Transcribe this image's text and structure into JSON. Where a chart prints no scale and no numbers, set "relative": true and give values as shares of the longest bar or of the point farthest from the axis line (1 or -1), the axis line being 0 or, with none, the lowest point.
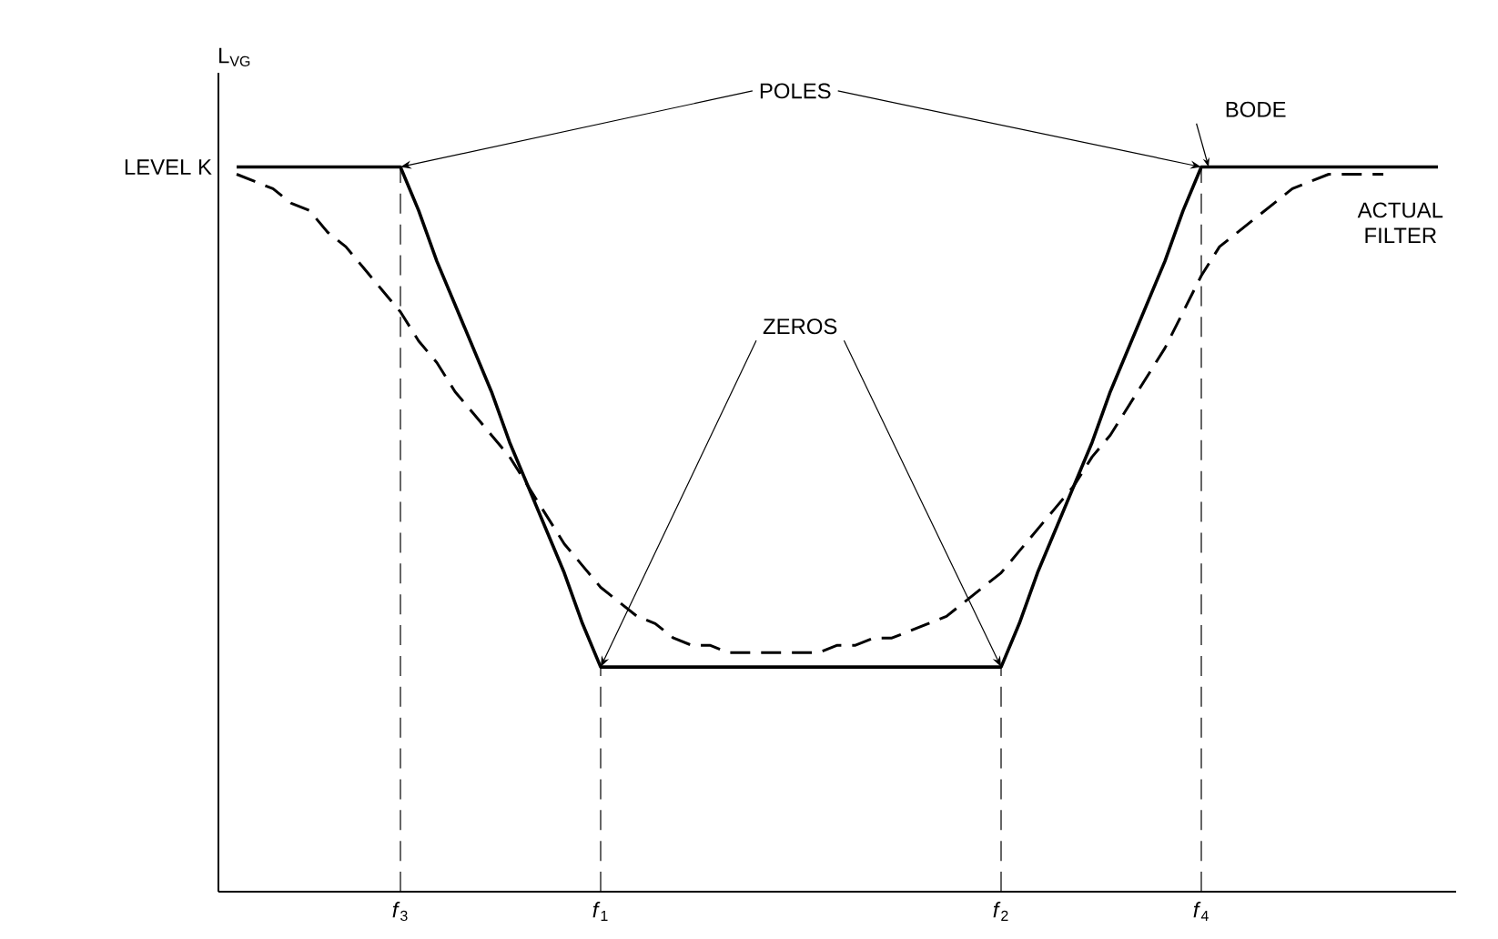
{
  "chart_data": {
    "type": "line",
    "relative": true,
    "ylabel": "L$_{VG}$",
    "categories": [
      null,
      null,
      null,
      null,
      null,
      null,
      null,
      null,
      null,
      null,
      "*f*$_{3}$",
      null,
      null,
      null,
      null,
      null,
      null,
      null,
      null,
      null,
      null,
      "*f*$_{1}$",
      null,
      null,
      null,
      null,
      null,
      null,
      null,
      null,
      null,
      null,
      null,
      null,
      null,
      null,
      null,
      null,
      null,
      null,
      null,
      null,
      null,
      "*f*$_{2}$",
      null,
      null,
      null,
      null,
      null,
      null,
      null,
      null,
      null,
      null,
      "*f*$_{4}$",
      null,
      null,
      null,
      null,
      null,
      null,
      null,
      null,
      null,
      null,
      null,
      null,
      null,
      null
    ],
    "series": [
      {
        "name": "BODE",
        "color": "#000000",
        "line_style": "solid",
        "values": [
          null,
          1,
          1,
          1,
          1,
          1,
          1,
          1,
          1,
          1,
          1,
          0.94,
          0.87,
          0.81,
          0.75,
          0.69,
          0.62,
          0.56,
          0.5,
          0.44,
          0.37,
          0.31,
          0.31,
          0.31,
          0.31,
          0.31,
          0.31,
          0.31,
          0.31,
          0.31,
          0.31,
          0.31,
          0.31,
          0.31,
          0.31,
          0.31,
          0.31,
          0.31,
          0.31,
          0.31,
          0.31,
          0.31,
          0.31,
          0.31,
          0.37,
          0.44,
          0.5,
          0.56,
          0.62,
          0.69,
          0.75,
          0.81,
          0.87,
          0.94,
          1,
          1,
          1,
          1,
          1,
          1,
          1,
          1,
          1,
          1,
          1,
          1,
          1,
          1,
          null
        ]
      },
      {
        "name": "ACTUAL FILTER",
        "color": "#000000",
        "line_style": "dashed",
        "values": [
          null,
          0.99,
          0.98,
          0.97,
          0.95,
          0.94,
          0.91,
          0.89,
          0.86,
          0.83,
          0.8,
          0.76,
          0.73,
          0.69,
          0.66,
          0.63,
          0.6,
          0.56,
          0.52,
          0.48,
          0.45,
          0.42,
          0.4,
          0.38,
          0.37,
          0.35,
          0.34,
          0.34,
          0.33,
          0.33,
          0.33,
          0.33,
          0.33,
          0.33,
          0.34,
          0.34,
          0.35,
          0.35,
          0.36,
          0.37,
          0.38,
          0.4,
          0.42,
          0.44,
          0.47,
          0.5,
          0.53,
          0.56,
          0.6,
          0.63,
          0.67,
          0.71,
          0.75,
          0.8,
          0.85,
          0.89,
          0.91,
          0.93,
          0.95,
          0.97,
          0.98,
          0.99,
          0.99,
          0.99,
          0.99,
          null,
          null,
          null,
          null
        ]
      }
    ],
    "marker": "none",
    "ref_lines": [
      {
        "axis": "x",
        "value": "*f*$_{3}$",
        "line_style": "dashed"
      },
      {
        "axis": "x",
        "value": "*f*$_{1}$",
        "line_style": "dashed"
      },
      {
        "axis": "x",
        "value": "*f*$_{2}$",
        "line_style": "dashed"
      },
      {
        "axis": "x",
        "value": "*f*$_{4}$",
        "line_style": "dashed"
      }
    ],
    "annotations": [
      "LEVEL K",
      "POLES",
      "ZEROS"
    ]
  }
}
